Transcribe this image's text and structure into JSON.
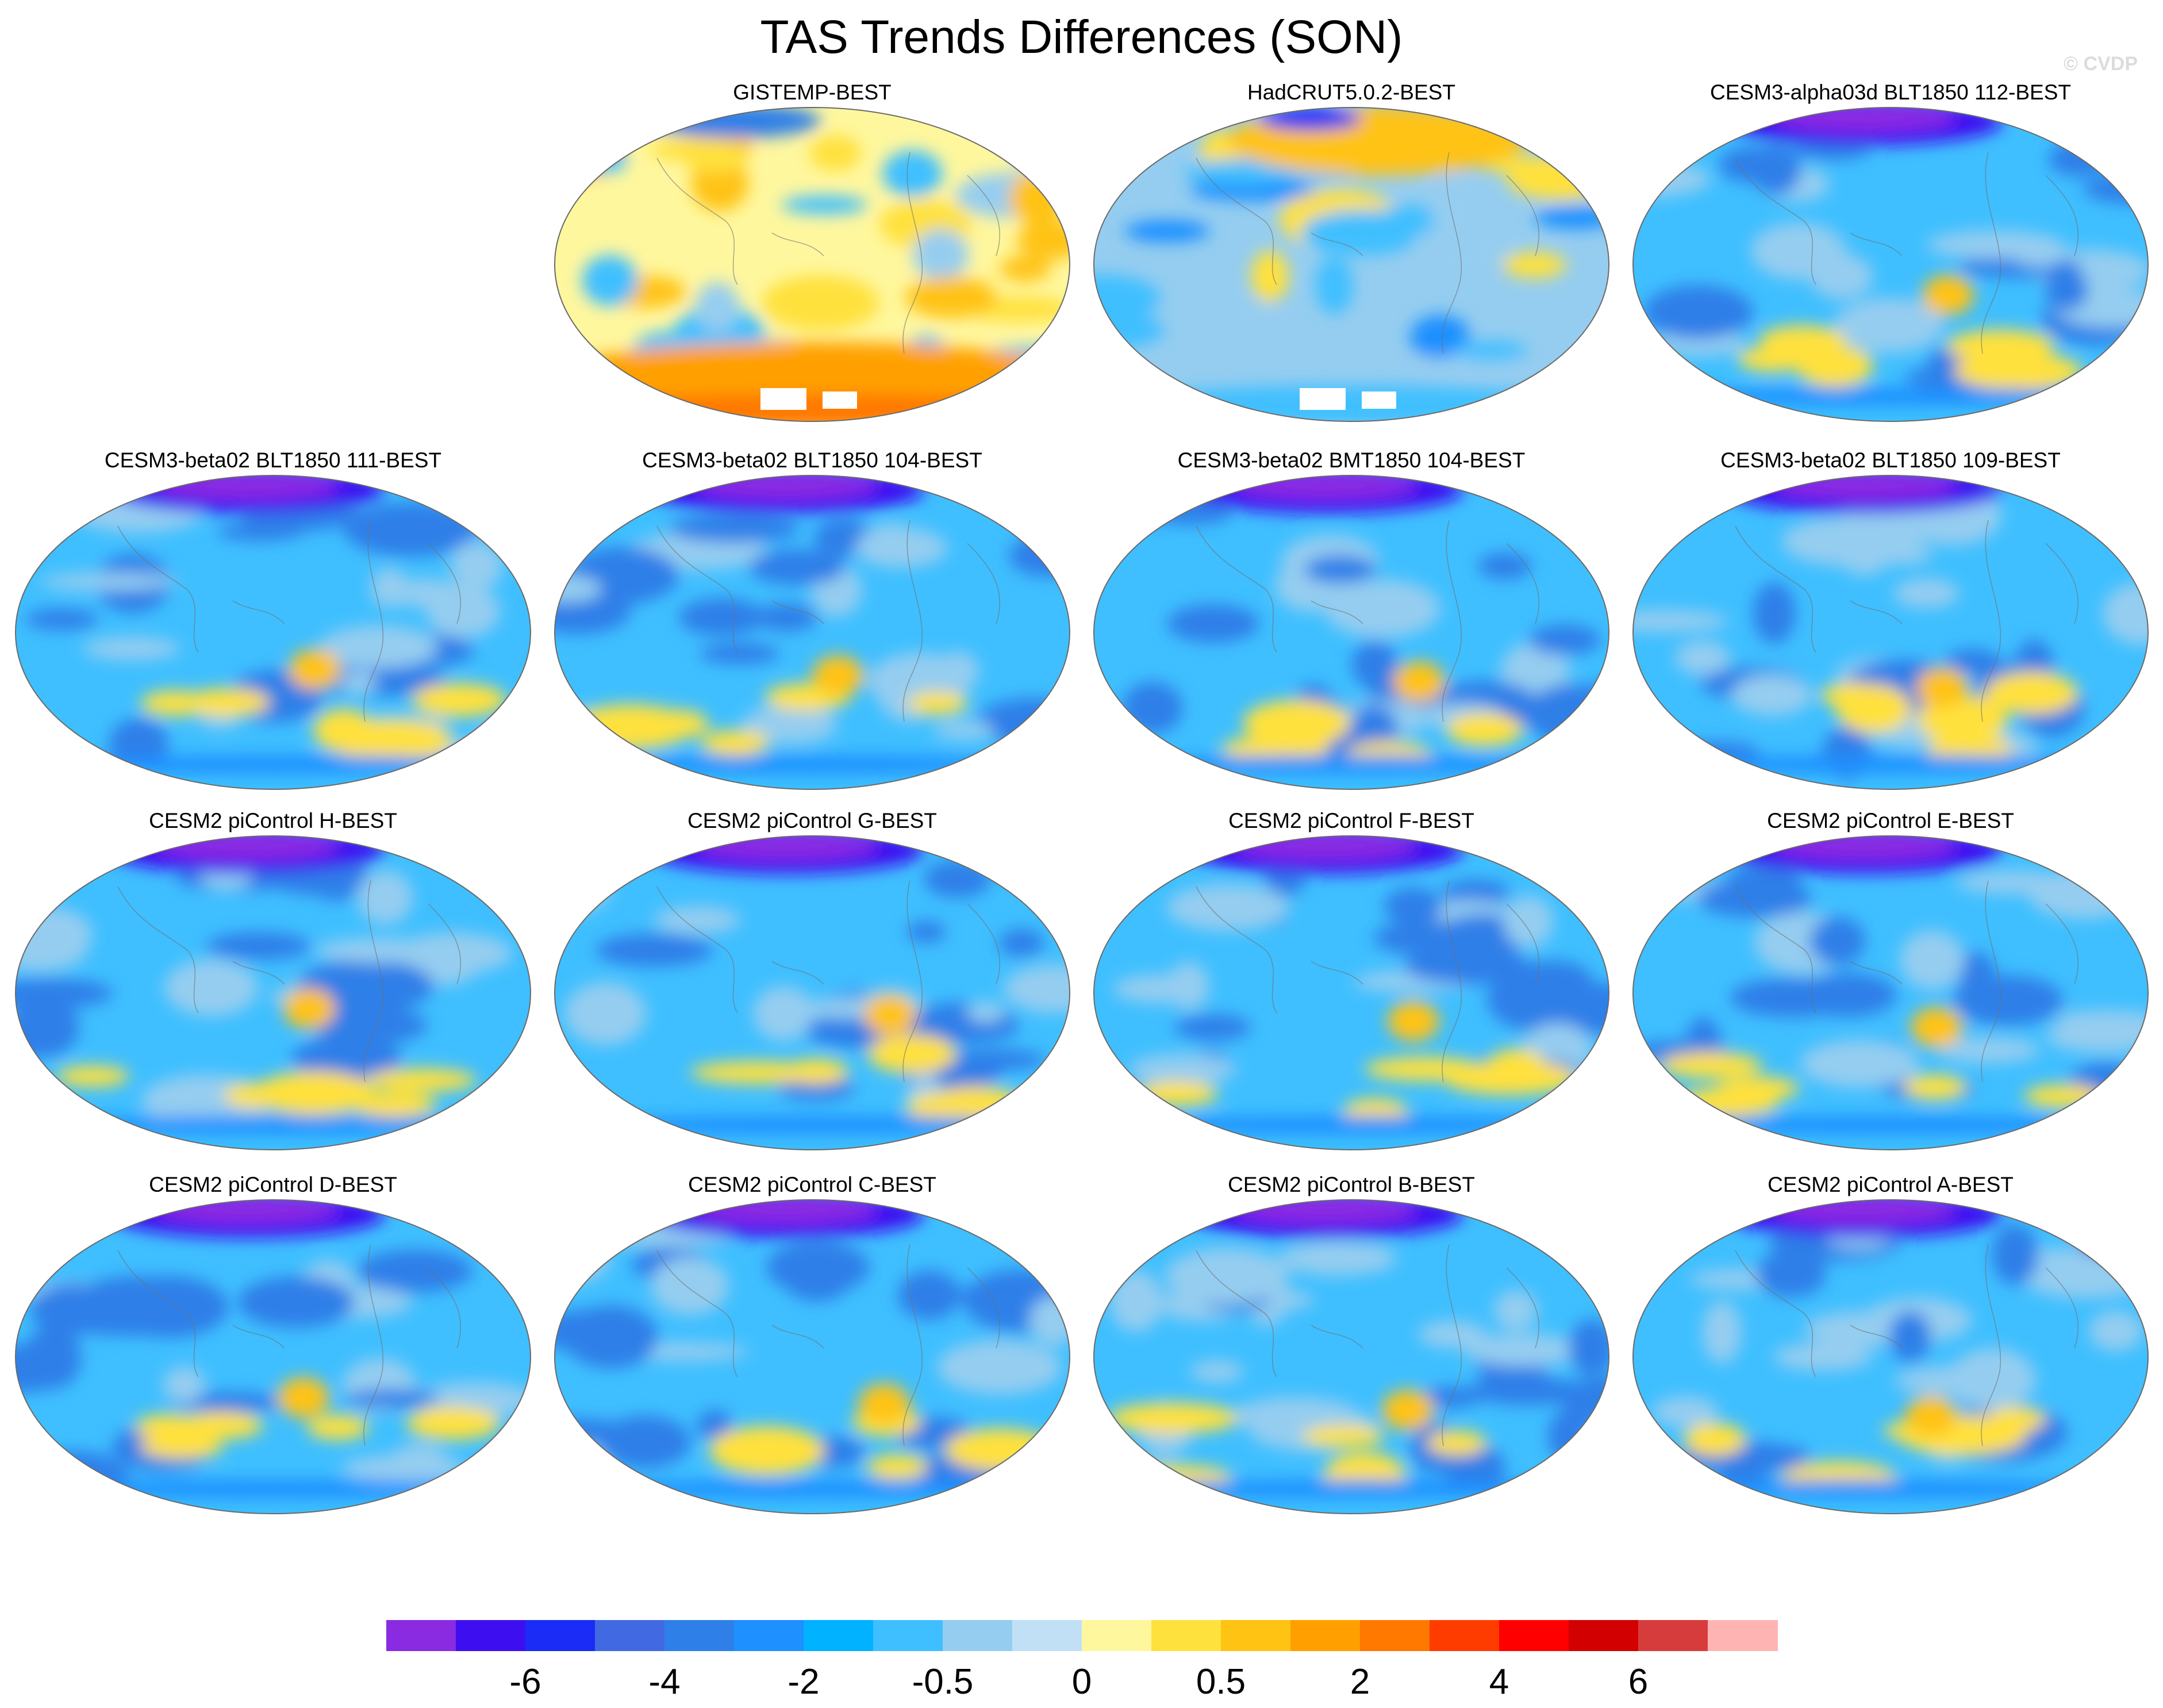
{
  "title": "TAS Trends Differences (SON)",
  "watermark": "© CVDP",
  "panels": [
    {
      "title": "GISTEMP-BEST",
      "variant": "obs-warm"
    },
    {
      "title": "HadCRUT5.0.2-BEST",
      "variant": "obs-mixed"
    },
    {
      "title": "CESM3-alpha03d BLT1850 112-BEST",
      "variant": "model"
    },
    {
      "title": "CESM3-beta02 BLT1850 111-BEST",
      "variant": "model"
    },
    {
      "title": "CESM3-beta02 BLT1850 104-BEST",
      "variant": "model"
    },
    {
      "title": "CESM3-beta02 BMT1850 104-BEST",
      "variant": "model"
    },
    {
      "title": "CESM3-beta02 BLT1850 109-BEST",
      "variant": "model"
    },
    {
      "title": "CESM2 piControl H-BEST",
      "variant": "model"
    },
    {
      "title": "CESM2 piControl G-BEST",
      "variant": "model"
    },
    {
      "title": "CESM2 piControl F-BEST",
      "variant": "model"
    },
    {
      "title": "CESM2 piControl E-BEST",
      "variant": "model"
    },
    {
      "title": "CESM2 piControl D-BEST",
      "variant": "model"
    },
    {
      "title": "CESM2 piControl C-BEST",
      "variant": "model"
    },
    {
      "title": "CESM2 piControl B-BEST",
      "variant": "model"
    },
    {
      "title": "CESM2 piControl A-BEST",
      "variant": "model"
    }
  ],
  "colorbar": {
    "colors": [
      "#8a2be2",
      "#3d0ff0",
      "#1a2cf5",
      "#4169e1",
      "#2f7fe8",
      "#1e90ff",
      "#00b2ff",
      "#3fbfff",
      "#95cdf0",
      "#c1e0f5",
      "#fff79e",
      "#ffe13d",
      "#ffc314",
      "#ffa000",
      "#ff7800",
      "#ff3c00",
      "#ff0000",
      "#d20000",
      "#d73c3c",
      "#ffb4b4"
    ],
    "labels": [
      {
        "text": "-6",
        "boundary": 2
      },
      {
        "text": "-4",
        "boundary": 4
      },
      {
        "text": "-2",
        "boundary": 6
      },
      {
        "text": "-0.5",
        "boundary": 8
      },
      {
        "text": "0",
        "boundary": 10
      },
      {
        "text": "0.5",
        "boundary": 12
      },
      {
        "text": "2",
        "boundary": 14
      },
      {
        "text": "4",
        "boundary": 16
      },
      {
        "text": "6",
        "boundary": 18
      }
    ]
  }
}
